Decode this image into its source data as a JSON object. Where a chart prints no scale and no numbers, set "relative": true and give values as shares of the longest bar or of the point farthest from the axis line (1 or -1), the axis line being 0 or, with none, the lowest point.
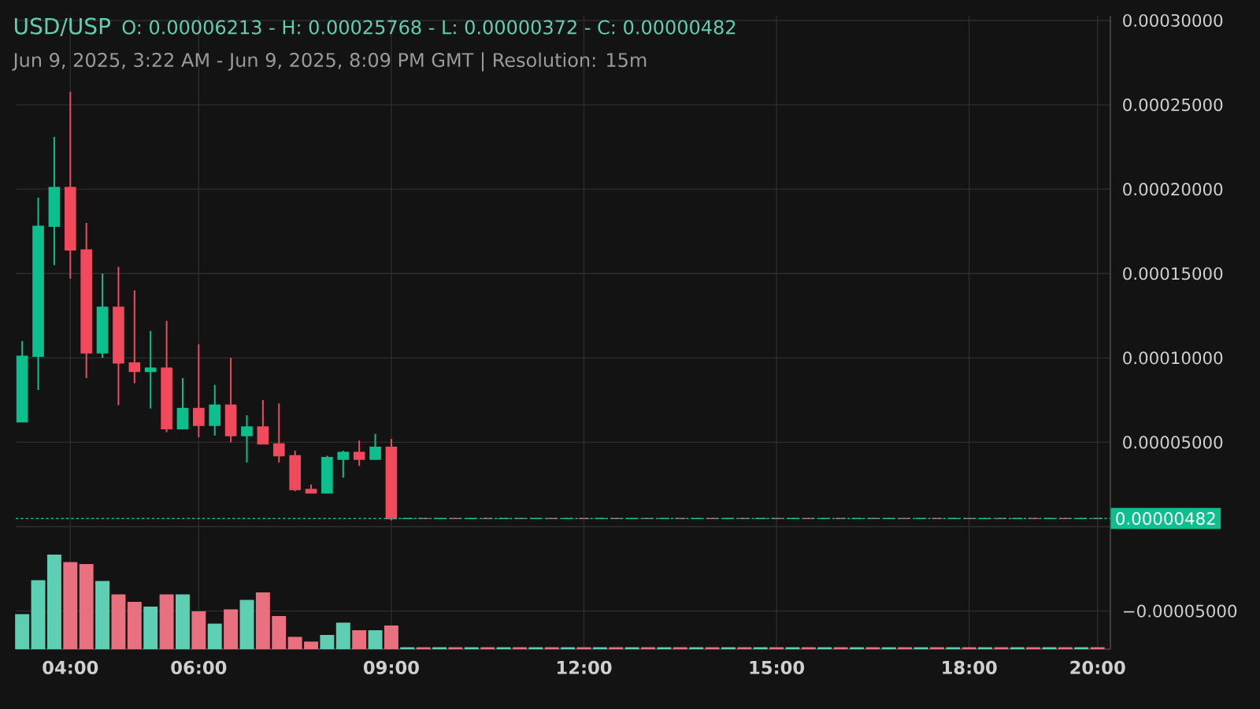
{
  "chart_data": [
    {
      "type": "candlestick",
      "title": "USD/USP",
      "subtitle": "Jun 9, 2025, 3:22 AM - Jun 9, 2025, 8:09 PM GMT   |   Resolution: 15m",
      "annotations": [
        "O: 0.00006213 - H: 0.00025768 - L: 0.00000372 - C: 0.00000482"
      ],
      "x": [
        3.25,
        3.5,
        3.75,
        4,
        4.25,
        4.5,
        4.75,
        5,
        5.25,
        5.5,
        5.75,
        6,
        6.25,
        6.5,
        6.75,
        7,
        7.25,
        7.5,
        7.75,
        8,
        8.25,
        8.5,
        8.75,
        9,
        9.25,
        9.5,
        9.75,
        10,
        10.25,
        10.5,
        10.75,
        11,
        11.25,
        11.5,
        11.75,
        12,
        12.25,
        12.5,
        12.75,
        13,
        13.25,
        13.5,
        13.75,
        14,
        14.25,
        14.5,
        14.75,
        15,
        15.25,
        15.5,
        15.75,
        16,
        16.25,
        16.5,
        16.75,
        17,
        17.25,
        17.5,
        17.75,
        18,
        18.25,
        18.5,
        18.75,
        19,
        19.25,
        19.5,
        19.75,
        20
      ],
      "ohlc": [
        [
          6.213e-05,
          0.00011,
          6.2e-05,
          0.000101
        ],
        [
          0.000101,
          0.000195,
          8.1e-05,
          0.000178
        ],
        [
          0.000178,
          0.000231,
          0.000155,
          0.000201
        ],
        [
          0.000201,
          0.00025768,
          0.000147,
          0.000164
        ],
        [
          0.000164,
          0.00018,
          8.8e-05,
          0.000103
        ],
        [
          0.000103,
          0.00015,
          0.0001,
          0.00013
        ],
        [
          0.00013,
          0.000154,
          7.2e-05,
          9.7e-05
        ],
        [
          9.7e-05,
          0.00014,
          8.5e-05,
          9.2e-05
        ],
        [
          9.2e-05,
          0.000116,
          7e-05,
          9.4e-05
        ],
        [
          9.4e-05,
          0.000122,
          5.6e-05,
          5.8e-05
        ],
        [
          5.8e-05,
          8.8e-05,
          5.8e-05,
          7e-05
        ],
        [
          7e-05,
          0.000108,
          5.3e-05,
          6e-05
        ],
        [
          6e-05,
          8.4e-05,
          5.4e-05,
          7.2e-05
        ],
        [
          7.2e-05,
          0.0001,
          5e-05,
          5.4e-05
        ],
        [
          5.4e-05,
          6.6e-05,
          3.8e-05,
          5.9e-05
        ],
        [
          5.9e-05,
          7.5e-05,
          4.9e-05,
          4.9e-05
        ],
        [
          4.9e-05,
          7.3e-05,
          3.8e-05,
          4.2e-05
        ],
        [
          4.2e-05,
          4.5e-05,
          2.1e-05,
          2.2e-05
        ],
        [
          2.2e-05,
          2.5e-05,
          2e-05,
          2e-05
        ],
        [
          2e-05,
          4.2e-05,
          2e-05,
          4.1e-05
        ],
        [
          4e-05,
          4.5e-05,
          2.9e-05,
          4.4e-05
        ],
        [
          4.4e-05,
          5.1e-05,
          3.6e-05,
          4e-05
        ],
        [
          4e-05,
          5.5e-05,
          4e-05,
          4.7e-05
        ],
        [
          4.7e-05,
          5.2e-05,
          3.72e-06,
          4.7e-06
        ],
        [
          4.82e-06,
          4.82e-06,
          4.82e-06,
          4.82e-06
        ],
        [
          4.82e-06,
          4.82e-06,
          4.82e-06,
          4.82e-06
        ],
        [
          4.82e-06,
          4.82e-06,
          4.82e-06,
          4.82e-06
        ],
        [
          4.82e-06,
          4.82e-06,
          4.82e-06,
          4.82e-06
        ],
        [
          4.82e-06,
          4.82e-06,
          4.82e-06,
          4.82e-06
        ],
        [
          4.82e-06,
          4.82e-06,
          4.82e-06,
          4.82e-06
        ],
        [
          4.82e-06,
          4.82e-06,
          4.82e-06,
          4.82e-06
        ],
        [
          4.82e-06,
          4.82e-06,
          4.82e-06,
          4.82e-06
        ],
        [
          4.82e-06,
          4.82e-06,
          4.82e-06,
          4.82e-06
        ],
        [
          4.82e-06,
          4.82e-06,
          4.82e-06,
          4.82e-06
        ],
        [
          4.82e-06,
          4.82e-06,
          4.82e-06,
          4.82e-06
        ],
        [
          4.82e-06,
          4.82e-06,
          4.82e-06,
          4.82e-06
        ],
        [
          4.82e-06,
          4.82e-06,
          4.82e-06,
          4.82e-06
        ],
        [
          4.82e-06,
          4.82e-06,
          4.82e-06,
          4.82e-06
        ],
        [
          4.82e-06,
          4.82e-06,
          4.82e-06,
          4.82e-06
        ],
        [
          4.82e-06,
          4.82e-06,
          4.82e-06,
          4.82e-06
        ],
        [
          4.82e-06,
          4.82e-06,
          4.82e-06,
          4.82e-06
        ],
        [
          4.82e-06,
          4.82e-06,
          4.82e-06,
          4.82e-06
        ],
        [
          4.82e-06,
          4.82e-06,
          4.82e-06,
          4.82e-06
        ],
        [
          4.82e-06,
          4.82e-06,
          4.82e-06,
          4.82e-06
        ],
        [
          4.82e-06,
          4.82e-06,
          4.82e-06,
          4.82e-06
        ],
        [
          4.82e-06,
          4.82e-06,
          4.82e-06,
          4.82e-06
        ],
        [
          4.82e-06,
          4.82e-06,
          4.82e-06,
          4.82e-06
        ],
        [
          4.82e-06,
          4.82e-06,
          4.82e-06,
          4.82e-06
        ],
        [
          4.82e-06,
          4.82e-06,
          4.82e-06,
          4.82e-06
        ],
        [
          4.82e-06,
          4.82e-06,
          4.82e-06,
          4.82e-06
        ],
        [
          4.82e-06,
          4.82e-06,
          4.82e-06,
          4.82e-06
        ],
        [
          4.82e-06,
          4.82e-06,
          4.82e-06,
          4.82e-06
        ],
        [
          4.82e-06,
          4.82e-06,
          4.82e-06,
          4.82e-06
        ],
        [
          4.82e-06,
          4.82e-06,
          4.82e-06,
          4.82e-06
        ],
        [
          4.82e-06,
          4.82e-06,
          4.82e-06,
          4.82e-06
        ],
        [
          4.82e-06,
          4.82e-06,
          4.82e-06,
          4.82e-06
        ],
        [
          4.82e-06,
          4.82e-06,
          4.82e-06,
          4.82e-06
        ],
        [
          4.82e-06,
          4.82e-06,
          4.82e-06,
          4.82e-06
        ],
        [
          4.82e-06,
          4.82e-06,
          4.82e-06,
          4.82e-06
        ],
        [
          4.82e-06,
          4.82e-06,
          4.82e-06,
          4.82e-06
        ],
        [
          4.82e-06,
          4.82e-06,
          4.82e-06,
          4.82e-06
        ],
        [
          4.82e-06,
          4.82e-06,
          4.82e-06,
          4.82e-06
        ],
        [
          4.82e-06,
          4.82e-06,
          4.82e-06,
          4.82e-06
        ],
        [
          4.82e-06,
          4.82e-06,
          4.82e-06,
          4.82e-06
        ],
        [
          4.82e-06,
          4.82e-06,
          4.82e-06,
          4.82e-06
        ],
        [
          4.82e-06,
          4.82e-06,
          4.82e-06,
          4.82e-06
        ],
        [
          4.82e-06,
          4.82e-06,
          4.82e-06,
          4.82e-06
        ],
        [
          4.82e-06,
          4.82e-06,
          4.82e-06,
          4.82e-06
        ]
      ],
      "colors": [
        "#0dbf8c",
        "#0dbf8c",
        "#0dbf8c",
        "#f04a5c",
        "#f04a5c",
        "#0dbf8c",
        "#f04a5c",
        "#f04a5c",
        "#0dbf8c",
        "#f04a5c",
        "#0dbf8c",
        "#f04a5c",
        "#0dbf8c",
        "#f04a5c",
        "#0dbf8c",
        "#f04a5c",
        "#f04a5c",
        "#f04a5c",
        "#f04a5c",
        "#0dbf8c",
        "#0dbf8c",
        "#f04a5c",
        "#0dbf8c",
        "#f04a5c",
        "#0dbf8c",
        "#f04a5c",
        "#0dbf8c",
        "#f04a5c",
        "#0dbf8c",
        "#f04a5c",
        "#0dbf8c",
        "#f04a5c",
        "#0dbf8c",
        "#f04a5c",
        "#0dbf8c",
        "#f04a5c",
        "#0dbf8c",
        "#f04a5c",
        "#0dbf8c",
        "#f04a5c",
        "#0dbf8c",
        "#f04a5c",
        "#0dbf8c",
        "#f04a5c",
        "#0dbf8c",
        "#f04a5c",
        "#0dbf8c",
        "#f04a5c",
        "#0dbf8c",
        "#f04a5c",
        "#0dbf8c",
        "#f04a5c",
        "#0dbf8c",
        "#f04a5c",
        "#0dbf8c",
        "#f04a5c",
        "#0dbf8c",
        "#f04a5c",
        "#0dbf8c",
        "#f04a5c",
        "#0dbf8c",
        "#f04a5c",
        "#0dbf8c",
        "#f04a5c",
        "#0dbf8c",
        "#f04a5c",
        "#0dbf8c",
        "#f04a5c"
      ],
      "xlim": [
        3.15,
        20.2
      ],
      "ylim": [
        -7.26e-05,
        0.0003028
      ],
      "xticks": [
        {
          "value": 4,
          "label": "04:00"
        },
        {
          "value": 6,
          "label": "06:00"
        },
        {
          "value": 9,
          "label": "09:00"
        },
        {
          "value": 12,
          "label": "12:00"
        },
        {
          "value": 15,
          "label": "15:00"
        },
        {
          "value": 18,
          "label": "18:00"
        },
        {
          "value": 20,
          "label": "20:00"
        }
      ],
      "yticks": [
        {
          "value": 0.0003,
          "label": "0.00030000"
        },
        {
          "value": 0.00025,
          "label": "0.00025000"
        },
        {
          "value": 0.0002,
          "label": "0.00020000"
        },
        {
          "value": 0.00015,
          "label": "0.00015000"
        },
        {
          "value": 0.0001,
          "label": "0.00010000"
        },
        {
          "value": 5e-05,
          "label": "0.00005000"
        },
        {
          "value": 0,
          "label": null
        },
        {
          "value": -5e-05,
          "label": "−0.00005000"
        }
      ],
      "ref_lines": [
        {
          "axis": "y",
          "value": 4.82e-06,
          "label": "0.00000482",
          "color": "#0dbf8c",
          "line_style": "dotted"
        }
      ],
      "grid": true
    },
    {
      "type": "bar",
      "relative": true,
      "xlim": [
        3.15,
        20.2
      ],
      "x": [
        3.25,
        3.5,
        3.75,
        4,
        4.25,
        4.5,
        4.75,
        5,
        5.25,
        5.5,
        5.75,
        6,
        6.25,
        6.5,
        6.75,
        7,
        7.25,
        7.5,
        7.75,
        8,
        8.25,
        8.5,
        8.75,
        9,
        9.25,
        9.5,
        9.75,
        10,
        10.25,
        10.5,
        10.75,
        11,
        11.25,
        11.5,
        11.75,
        12,
        12.25,
        12.5,
        12.75,
        13,
        13.25,
        13.5,
        13.75,
        14,
        14.25,
        14.5,
        14.75,
        15,
        15.25,
        15.5,
        15.75,
        16,
        16.25,
        16.5,
        16.75,
        17,
        17.25,
        17.5,
        17.75,
        18,
        18.25,
        18.5,
        18.75,
        19,
        19.25,
        19.5,
        19.75,
        20
      ],
      "values": [
        0.37,
        0.73,
        1,
        0.92,
        0.9,
        0.72,
        0.58,
        0.5,
        0.45,
        0.58,
        0.58,
        0.4,
        0.27,
        0.42,
        0.52,
        0.6,
        0.35,
        0.13,
        0.08,
        0.15,
        0.28,
        0.2,
        0.2,
        0.25,
        0.02,
        0.02,
        0.02,
        0.02,
        0.02,
        0.02,
        0.02,
        0.02,
        0.02,
        0.02,
        0.02,
        0.02,
        0.02,
        0.02,
        0.02,
        0.02,
        0.02,
        0.02,
        0.02,
        0.02,
        0.02,
        0.02,
        0.02,
        0.02,
        0.02,
        0.02,
        0.02,
        0.02,
        0.02,
        0.02,
        0.02,
        0.02,
        0.02,
        0.02,
        0.02,
        0.02,
        0.02,
        0.02,
        0.02,
        0.02,
        0.02,
        0.02,
        0.02,
        0.02
      ],
      "colors": [
        "#5fcfb3",
        "#5fcfb3",
        "#5fcfb3",
        "#e9707f",
        "#e9707f",
        "#5fcfb3",
        "#e9707f",
        "#e9707f",
        "#5fcfb3",
        "#e9707f",
        "#5fcfb3",
        "#e9707f",
        "#5fcfb3",
        "#e9707f",
        "#5fcfb3",
        "#e9707f",
        "#e9707f",
        "#e9707f",
        "#e9707f",
        "#5fcfb3",
        "#5fcfb3",
        "#e9707f",
        "#5fcfb3",
        "#e9707f",
        "#5fcfb3",
        "#e9707f",
        "#5fcfb3",
        "#e9707f",
        "#5fcfb3",
        "#e9707f",
        "#5fcfb3",
        "#e9707f",
        "#5fcfb3",
        "#e9707f",
        "#5fcfb3",
        "#e9707f",
        "#5fcfb3",
        "#e9707f",
        "#5fcfb3",
        "#e9707f",
        "#5fcfb3",
        "#e9707f",
        "#5fcfb3",
        "#e9707f",
        "#5fcfb3",
        "#e9707f",
        "#5fcfb3",
        "#e9707f",
        "#5fcfb3",
        "#e9707f",
        "#5fcfb3",
        "#e9707f",
        "#5fcfb3",
        "#e9707f",
        "#5fcfb3",
        "#e9707f",
        "#5fcfb3",
        "#e9707f",
        "#5fcfb3",
        "#e9707f",
        "#5fcfb3",
        "#e9707f",
        "#5fcfb3",
        "#e9707f",
        "#5fcfb3",
        "#e9707f",
        "#5fcfb3",
        "#e9707f"
      ]
    }
  ]
}
